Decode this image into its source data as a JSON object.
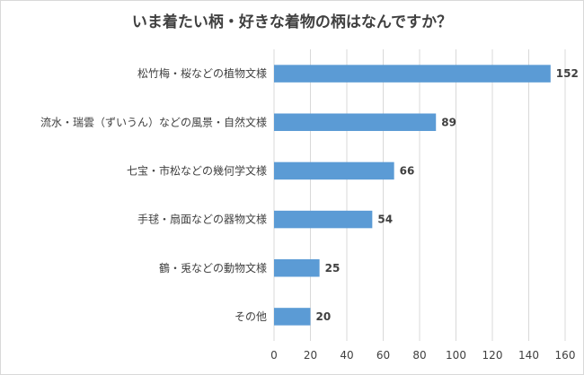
{
  "chart_data": {
    "type": "bar",
    "orientation": "horizontal",
    "title": "いま着たい柄・好きな着物の柄はなんですか？",
    "categories": [
      "松竹梅・桜などの植物文様",
      "流水・瑞雲（ずいうん）などの風景・自然文様",
      "七宝・市松などの幾何学文様",
      "手毬・扇面などの器物文様",
      "鶴・兎などの動物文様",
      "その他"
    ],
    "values": [
      152,
      89,
      66,
      54,
      25,
      20
    ],
    "xlim": [
      0,
      160
    ],
    "xticks": [
      0,
      20,
      40,
      60,
      80,
      100,
      120,
      140,
      160
    ],
    "grid": true,
    "bar_color": "#5b9bd5",
    "grid_color": "#d9d9d9",
    "data_labels": true,
    "legend": "none"
  }
}
